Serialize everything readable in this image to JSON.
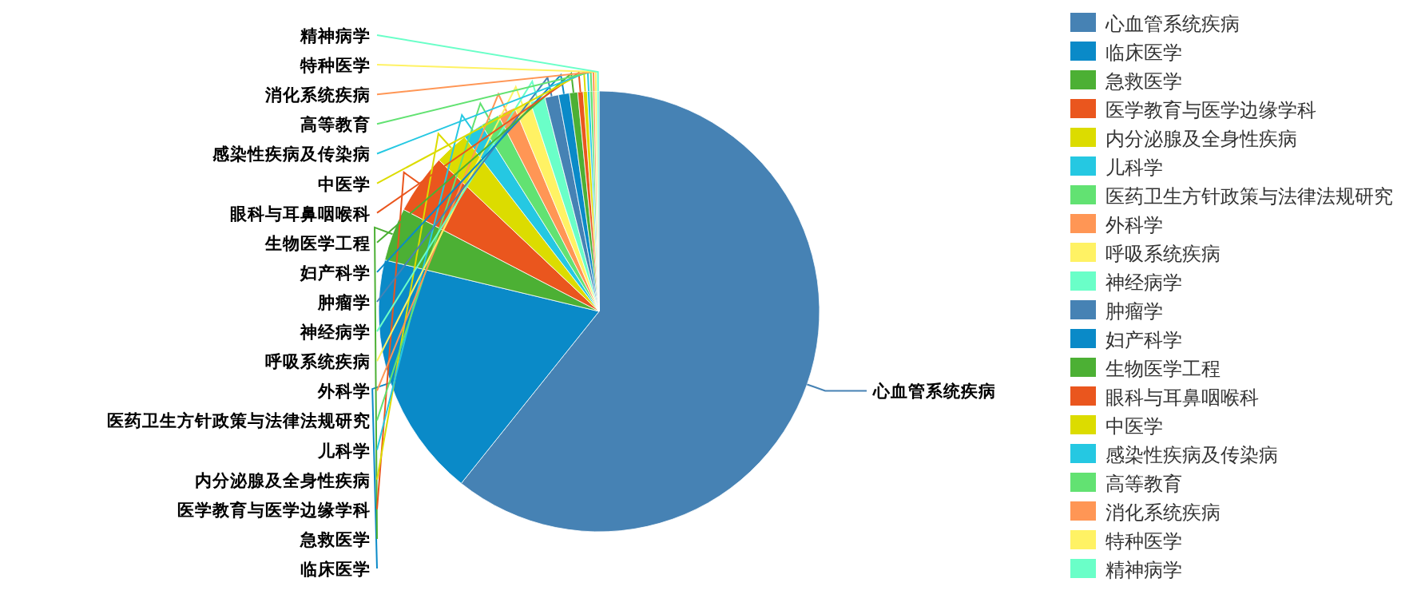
{
  "chart_data": {
    "type": "pie",
    "categories": [
      "心血管系统疾病",
      "临床医学",
      "急救医学",
      "医学教育与医学边缘学科",
      "内分泌腺及全身性疾病",
      "儿科学",
      "医药卫生方针政策与法律法规研究",
      "外科学",
      "呼吸系统疾病",
      "神经病学",
      "肿瘤学",
      "妇产科学",
      "生物医学工程",
      "眼科与耳鼻咽喉科",
      "中医学",
      "感染性疾病及传染病",
      "高等教育",
      "消化系统疾病",
      "特种医学",
      "精神病学"
    ],
    "values": [
      60.75,
      18,
      3.9,
      4.4,
      2.5,
      1.5,
      1.4,
      1.3,
      1.2,
      1.1,
      1.0,
      0.8,
      0.6,
      0.4,
      0.3,
      0.2,
      0.2,
      0.15,
      0.15,
      0.15
    ],
    "colors": [
      "#4682b4",
      "#0a8ac8",
      "#4cb034",
      "#ea561e",
      "#dcdc00",
      "#25c8e2",
      "#62e272",
      "#ff9655",
      "#fff264",
      "#6affc8",
      "#4682b4",
      "#0a8ac8",
      "#4cb034",
      "#ea561e",
      "#dcdc00",
      "#25c8e2",
      "#62e272",
      "#ff9655",
      "#fff264",
      "#6affc8"
    ],
    "legend": "right"
  }
}
